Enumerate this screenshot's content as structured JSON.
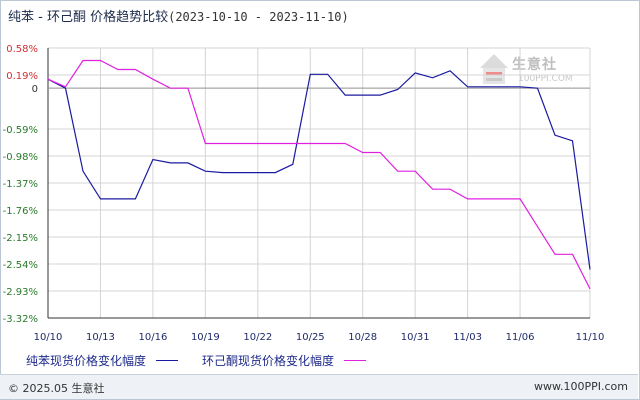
{
  "title": {
    "main": "纯苯 - 环己酮 价格趋势比较",
    "range": "(2023-10-10 - 2023-11-10)"
  },
  "watermark": {
    "name": "生意社",
    "sub": "100PPI.COM"
  },
  "footer": {
    "copyright": "© 2025.05 生意社",
    "url": "www.100PPI.com"
  },
  "colors": {
    "series1": "#1a1aa0",
    "series2": "#e020e0",
    "grid": "#d4d4d4",
    "axis": "#333333"
  },
  "chart_data": {
    "type": "line",
    "title": "纯苯 - 环己酮 价格趋势比较",
    "subtitle": "(2023-10-10 - 2023-11-10)",
    "xlabel": "",
    "ylabel": "",
    "ylim": [
      -3.32,
      0.58
    ],
    "grid": true,
    "legend_position": "bottom-left",
    "x": [
      "10/10",
      "10/11",
      "10/12",
      "10/13",
      "10/14",
      "10/15",
      "10/16",
      "10/17",
      "10/18",
      "10/19",
      "10/20",
      "10/21",
      "10/22",
      "10/23",
      "10/24",
      "10/25",
      "10/26",
      "10/27",
      "10/28",
      "10/29",
      "10/30",
      "10/31",
      "11/01",
      "11/02",
      "11/03",
      "11/04",
      "11/05",
      "11/06",
      "11/07",
      "11/08",
      "11/09",
      "11/10"
    ],
    "x_ticks": [
      "10/10",
      "10/13",
      "10/16",
      "10/19",
      "10/22",
      "10/25",
      "10/28",
      "10/31",
      "11/03",
      "11/06",
      "11/10"
    ],
    "y_ticks": [
      {
        "value": 0.58,
        "label": "0.58%"
      },
      {
        "value": 0.19,
        "label": "0.19%"
      },
      {
        "value": 0,
        "label": "0"
      },
      {
        "value": -0.59,
        "label": "-0.59%"
      },
      {
        "value": -0.98,
        "label": "-0.98%"
      },
      {
        "value": -1.37,
        "label": "-1.37%"
      },
      {
        "value": -1.76,
        "label": "-1.76%"
      },
      {
        "value": -2.15,
        "label": "-2.15%"
      },
      {
        "value": -2.54,
        "label": "-2.54%"
      },
      {
        "value": -2.93,
        "label": "-2.93%"
      },
      {
        "value": -3.32,
        "label": "-3.32%"
      }
    ],
    "series": [
      {
        "name": "纯苯现货价格变化幅度",
        "color": "#1a1aa0",
        "values": [
          0.13,
          0.0,
          -1.2,
          -1.6,
          -1.6,
          -1.6,
          -1.03,
          -1.08,
          -1.08,
          -1.2,
          -1.22,
          -1.22,
          -1.22,
          -1.22,
          -1.1,
          0.2,
          0.2,
          -0.1,
          -0.1,
          -0.1,
          -0.02,
          0.22,
          0.15,
          0.25,
          0.02,
          0.02,
          0.02,
          0.02,
          0.0,
          -0.68,
          -0.76,
          -2.62
        ]
      },
      {
        "name": "环己酮现货价格变化幅度",
        "color": "#e020e0",
        "values": [
          0.13,
          0.02,
          0.4,
          0.4,
          0.27,
          0.27,
          0.13,
          0.0,
          0.0,
          -0.8,
          -0.8,
          -0.8,
          -0.8,
          -0.8,
          -0.8,
          -0.8,
          -0.8,
          -0.8,
          -0.93,
          -0.93,
          -1.2,
          -1.2,
          -1.46,
          -1.46,
          -1.6,
          -1.6,
          -1.6,
          -1.6,
          -2.0,
          -2.4,
          -2.4,
          -2.9
        ]
      }
    ]
  }
}
